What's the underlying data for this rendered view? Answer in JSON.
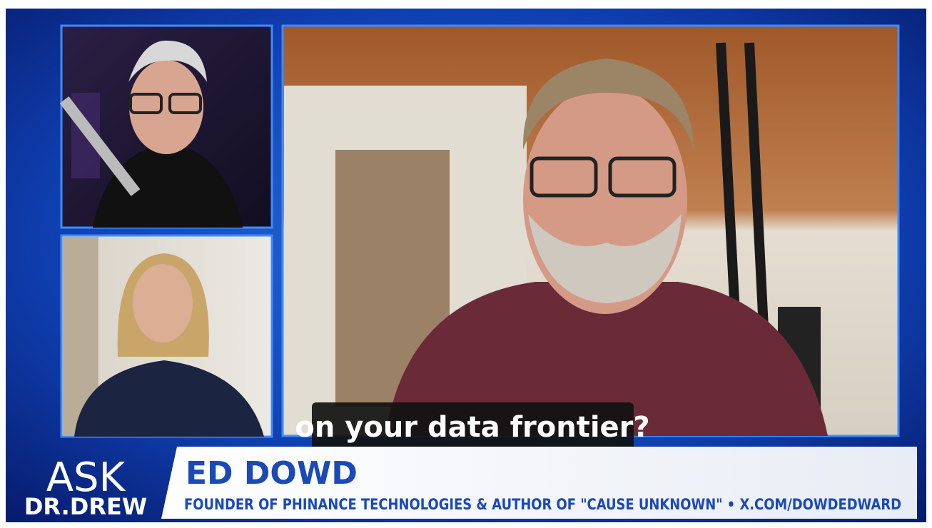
{
  "logo": {
    "line1": "ASK",
    "line2": "DR.DREW"
  },
  "lower_third": {
    "name": "ED DOWD",
    "title": "FOUNDER OF PHINANCE TECHNOLOGIES & AUTHOR OF \"CAUSE UNKNOWN\" • X.COM/DOWDEDWARD"
  },
  "caption": "on your data frontier?"
}
